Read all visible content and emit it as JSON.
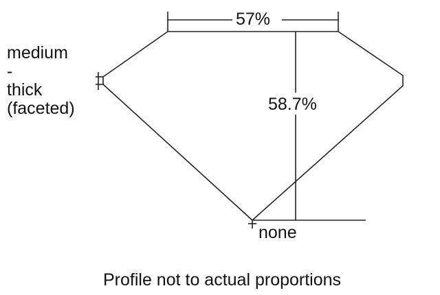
{
  "diagram": {
    "table_percent": "57%",
    "depth_percent": "58.7%",
    "girdle_label": [
      "medium",
      "-",
      "thick",
      "(faceted)"
    ],
    "culet_label": "none",
    "caption": "Profile not to actual proportions",
    "line_color": "#222222"
  }
}
